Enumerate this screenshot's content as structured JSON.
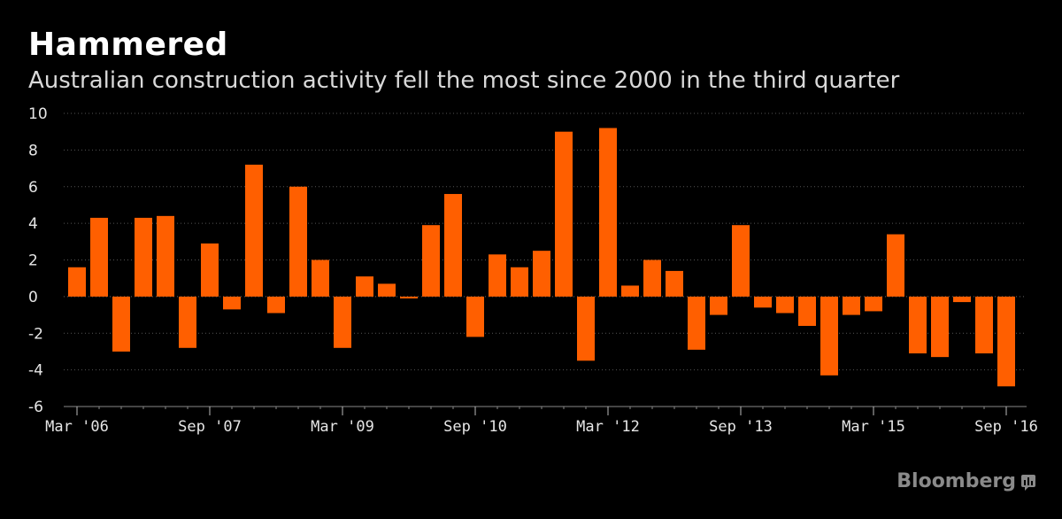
{
  "header": {
    "title": "Hammered",
    "subtitle": "Australian construction activity fell the most since 2000 in the third quarter"
  },
  "brand": {
    "name": "Bloomberg",
    "icon": "bloomberg-terminal-icon"
  },
  "colors": {
    "bar": "#ff5f00",
    "background": "#000000",
    "grid": "#555555",
    "text": "#e6e6e6"
  },
  "chart_data": {
    "type": "bar",
    "title": "Hammered",
    "subtitle": "Australian construction activity fell the most since 2000 in the third quarter",
    "xlabel": "",
    "ylabel": "",
    "ylim": [
      -6,
      10
    ],
    "yticks": [
      10,
      8,
      6,
      4,
      2,
      0,
      -2,
      -4,
      -6
    ],
    "grid": true,
    "categories": [
      "Mar '06",
      "Jun '06",
      "Sep '06",
      "Dec '06",
      "Mar '07",
      "Jun '07",
      "Sep '07",
      "Dec '07",
      "Mar '08",
      "Jun '08",
      "Sep '08",
      "Dec '08",
      "Mar '09",
      "Jun '09",
      "Sep '09",
      "Dec '09",
      "Mar '10",
      "Jun '10",
      "Sep '10",
      "Dec '10",
      "Mar '11",
      "Jun '11",
      "Sep '11",
      "Dec '11",
      "Mar '12",
      "Jun '12",
      "Sep '12",
      "Dec '12",
      "Mar '13",
      "Jun '13",
      "Sep '13",
      "Dec '13",
      "Mar '14",
      "Jun '14",
      "Sep '14",
      "Dec '14",
      "Mar '15",
      "Jun '15",
      "Sep '15",
      "Dec '15",
      "Mar '16",
      "Jun '16",
      "Sep '16"
    ],
    "values": [
      1.6,
      4.3,
      -3.0,
      4.3,
      4.4,
      -2.8,
      2.9,
      -0.7,
      7.2,
      -0.9,
      6.0,
      2.0,
      -2.8,
      1.1,
      0.7,
      -0.1,
      3.9,
      5.6,
      -2.2,
      2.3,
      1.6,
      2.5,
      9.0,
      -3.5,
      9.2,
      0.6,
      2.0,
      1.4,
      -2.9,
      -1.0,
      3.9,
      -0.6,
      -0.9,
      -1.6,
      -4.3,
      -1.0,
      -0.8,
      3.4,
      -3.1,
      -3.3,
      -0.3,
      -3.1,
      -4.9
    ],
    "xtick_labels": [
      {
        "index": 0,
        "label": "Mar '06"
      },
      {
        "index": 6,
        "label": "Sep '07"
      },
      {
        "index": 12,
        "label": "Mar '09"
      },
      {
        "index": 18,
        "label": "Sep '10"
      },
      {
        "index": 24,
        "label": "Mar '12"
      },
      {
        "index": 30,
        "label": "Sep '13"
      },
      {
        "index": 36,
        "label": "Mar '15"
      },
      {
        "index": 42,
        "label": "Sep '16"
      }
    ]
  }
}
